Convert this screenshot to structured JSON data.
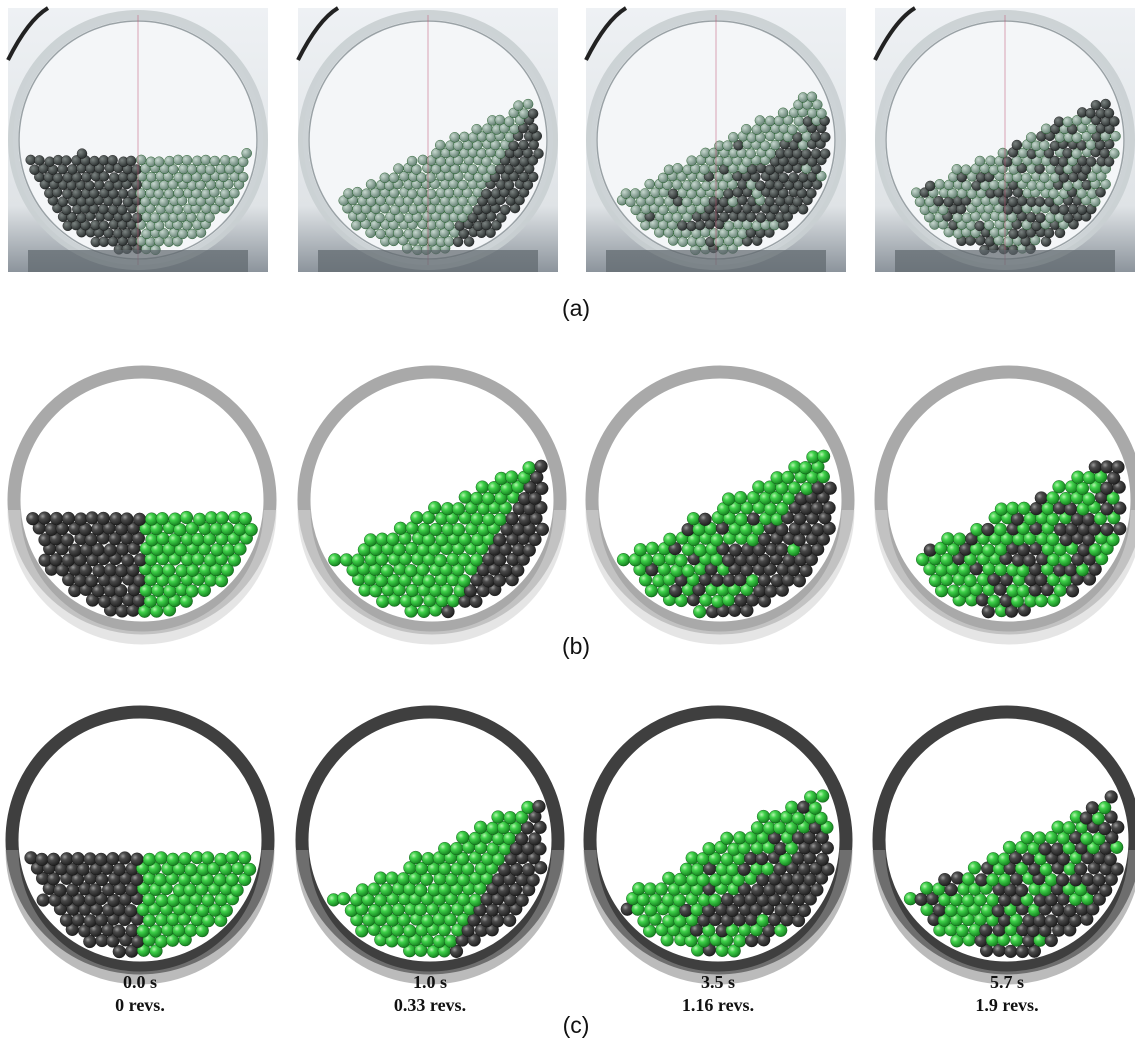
{
  "panels": [
    {
      "label": "(a)"
    },
    {
      "label": "(b)"
    },
    {
      "label": "(c)",
      "captions": [
        {
          "time": "0.0 s",
          "revs": "0 revs."
        },
        {
          "time": "1.0 s",
          "revs": "0.33 revs."
        },
        {
          "time": "3.5 s",
          "revs": "1.16 revs."
        },
        {
          "time": "5.7 s",
          "revs": "1.9 revs."
        }
      ]
    }
  ]
}
